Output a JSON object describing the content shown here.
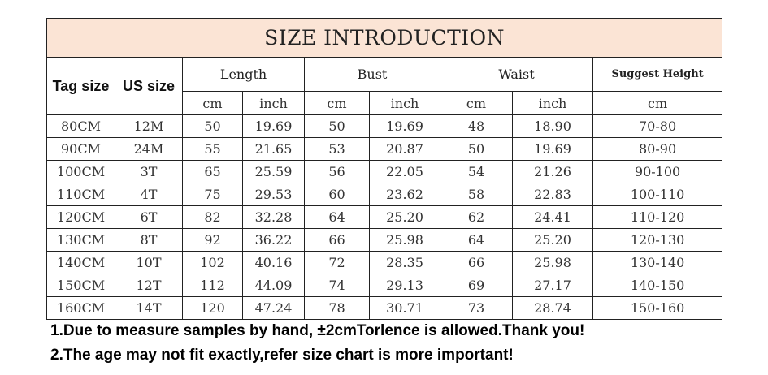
{
  "title": "SIZE INTRODUCTION",
  "headers": {
    "tag_size": "Tag size",
    "us_size": "US size",
    "length": "Length",
    "bust": "Bust",
    "waist": "Waist",
    "suggest_height": "Suggest Height",
    "cm": "cm",
    "inch": "inch"
  },
  "rows": [
    [
      "80CM",
      "12M",
      "50",
      "19.69",
      "50",
      "19.69",
      "48",
      "18.90",
      "70-80"
    ],
    [
      "90CM",
      "24M",
      "55",
      "21.65",
      "53",
      "20.87",
      "50",
      "19.69",
      "80-90"
    ],
    [
      "100CM",
      "3T",
      "65",
      "25.59",
      "56",
      "22.05",
      "54",
      "21.26",
      "90-100"
    ],
    [
      "110CM",
      "4T",
      "75",
      "29.53",
      "60",
      "23.62",
      "58",
      "22.83",
      "100-110"
    ],
    [
      "120CM",
      "6T",
      "82",
      "32.28",
      "64",
      "25.20",
      "62",
      "24.41",
      "110-120"
    ],
    [
      "130CM",
      "8T",
      "92",
      "36.22",
      "66",
      "25.98",
      "64",
      "25.20",
      "120-130"
    ],
    [
      "140CM",
      "10T",
      "102",
      "40.16",
      "72",
      "28.35",
      "66",
      "25.98",
      "130-140"
    ],
    [
      "150CM",
      "12T",
      "112",
      "44.09",
      "74",
      "29.13",
      "69",
      "27.17",
      "140-150"
    ],
    [
      "160CM",
      "14T",
      "120",
      "47.24",
      "78",
      "30.71",
      "73",
      "28.74",
      "150-160"
    ]
  ],
  "notes": [
    "1.Due to measure samples by hand, ±2cmTorlence is allowed.Thank you!",
    "2.The age may not fit exactly,refer size chart is more important!"
  ]
}
